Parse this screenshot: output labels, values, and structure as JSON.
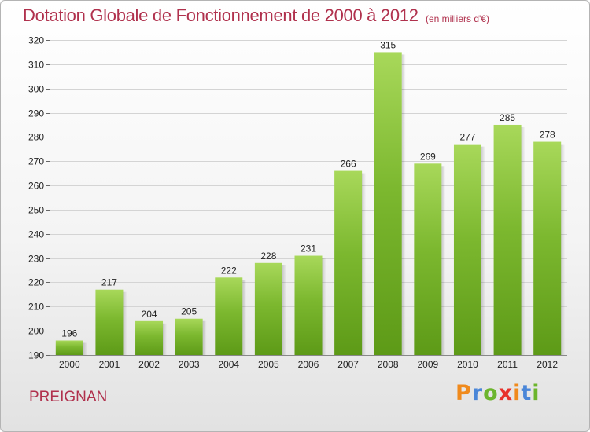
{
  "title": "Dotation Globale de Fonctionnement de 2000 à 2012",
  "unit_note": "(en milliers d'€)",
  "place_name": "PREIGNAN",
  "logo": {
    "letters": [
      "P",
      "r",
      "o",
      "x",
      "i",
      "t",
      "i"
    ],
    "colors": [
      "#f08a1c",
      "#4a86d8",
      "#6cb52d",
      "#e8322c",
      "#f08a1c",
      "#4a86d8",
      "#6cb52d"
    ]
  },
  "chart_data": {
    "type": "bar",
    "categories": [
      "2000",
      "2001",
      "2002",
      "2003",
      "2004",
      "2005",
      "2006",
      "2007",
      "2008",
      "2009",
      "2010",
      "2011",
      "2012"
    ],
    "values": [
      196,
      217,
      204,
      205,
      222,
      228,
      231,
      266,
      315,
      269,
      277,
      285,
      278
    ],
    "ylim": [
      190,
      320
    ],
    "yticks": [
      190,
      200,
      210,
      220,
      230,
      240,
      250,
      260,
      270,
      280,
      290,
      300,
      310,
      320
    ],
    "grid": true,
    "bar_color": "#7cb82f",
    "bar_color_light": "#a8d85a",
    "bar_color_dark": "#5d9a17"
  }
}
